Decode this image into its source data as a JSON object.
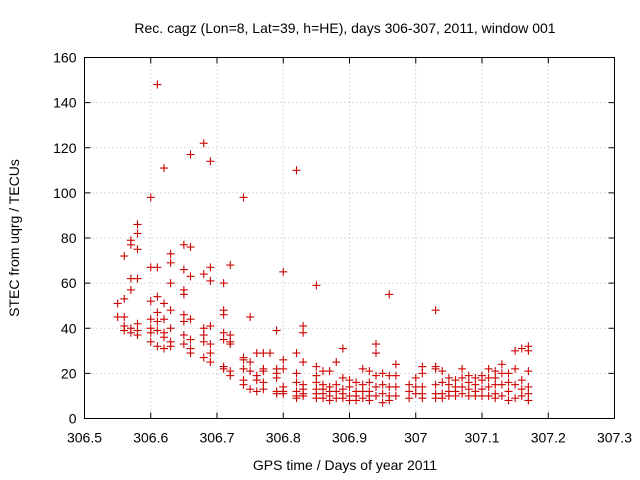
{
  "chart_data": {
    "type": "scatter",
    "title": "Rec. cagz (Lon=8, Lat=39, h=HE), days 306-307, 2011, window 001",
    "xlabel": "GPS time / Days of year 2011",
    "ylabel": "STEC from uqrg / TECUs",
    "xlim": [
      306.5,
      307.3
    ],
    "ylim": [
      0,
      160
    ],
    "x_ticks": [
      306.5,
      306.6,
      306.7,
      306.8,
      306.9,
      307.0,
      307.1,
      307.2,
      307.3
    ],
    "x_tick_labels": [
      "306.5",
      "306.6",
      "306.7",
      "306.8",
      "306.9",
      "307",
      "307.1",
      "307.2",
      "307.3"
    ],
    "y_ticks": [
      0,
      20,
      40,
      60,
      80,
      100,
      120,
      140,
      160
    ],
    "y_tick_labels": [
      "0",
      "20",
      "40",
      "60",
      "80",
      "100",
      "120",
      "140",
      "160"
    ],
    "grid": true,
    "marker": "+",
    "color": "#cc0000",
    "series": [
      {
        "name": "STEC",
        "points": [
          [
            306.55,
            51
          ],
          [
            306.55,
            45
          ],
          [
            306.56,
            72
          ],
          [
            306.56,
            53
          ],
          [
            306.56,
            45
          ],
          [
            306.56,
            41
          ],
          [
            306.56,
            39
          ],
          [
            306.57,
            79
          ],
          [
            306.57,
            77
          ],
          [
            306.57,
            62
          ],
          [
            306.57,
            57
          ],
          [
            306.57,
            40
          ],
          [
            306.57,
            38
          ],
          [
            306.58,
            86
          ],
          [
            306.58,
            82
          ],
          [
            306.58,
            75
          ],
          [
            306.58,
            62
          ],
          [
            306.58,
            42
          ],
          [
            306.58,
            39
          ],
          [
            306.58,
            37
          ],
          [
            306.6,
            98
          ],
          [
            306.6,
            67
          ],
          [
            306.6,
            52
          ],
          [
            306.6,
            44
          ],
          [
            306.6,
            40
          ],
          [
            306.6,
            38
          ],
          [
            306.6,
            34
          ],
          [
            306.61,
            148
          ],
          [
            306.61,
            67
          ],
          [
            306.61,
            54
          ],
          [
            306.61,
            47
          ],
          [
            306.61,
            43
          ],
          [
            306.61,
            39
          ],
          [
            306.61,
            32
          ],
          [
            306.62,
            111
          ],
          [
            306.62,
            51
          ],
          [
            306.62,
            44
          ],
          [
            306.62,
            38
          ],
          [
            306.62,
            36
          ],
          [
            306.62,
            31
          ],
          [
            306.63,
            73
          ],
          [
            306.63,
            69
          ],
          [
            306.63,
            60
          ],
          [
            306.63,
            48
          ],
          [
            306.63,
            40
          ],
          [
            306.63,
            34
          ],
          [
            306.63,
            32
          ],
          [
            306.65,
            77
          ],
          [
            306.65,
            66
          ],
          [
            306.65,
            57
          ],
          [
            306.65,
            55
          ],
          [
            306.65,
            46
          ],
          [
            306.65,
            43
          ],
          [
            306.65,
            37
          ],
          [
            306.65,
            33
          ],
          [
            306.66,
            117
          ],
          [
            306.66,
            76
          ],
          [
            306.66,
            63
          ],
          [
            306.66,
            44
          ],
          [
            306.66,
            35
          ],
          [
            306.66,
            31
          ],
          [
            306.66,
            29
          ],
          [
            306.68,
            122
          ],
          [
            306.68,
            64
          ],
          [
            306.68,
            40
          ],
          [
            306.68,
            37
          ],
          [
            306.68,
            34
          ],
          [
            306.68,
            27
          ],
          [
            306.69,
            114
          ],
          [
            306.69,
            67
          ],
          [
            306.69,
            61
          ],
          [
            306.69,
            41
          ],
          [
            306.69,
            33
          ],
          [
            306.69,
            29
          ],
          [
            306.69,
            25
          ],
          [
            306.71,
            60
          ],
          [
            306.71,
            48
          ],
          [
            306.71,
            46
          ],
          [
            306.71,
            38
          ],
          [
            306.71,
            35
          ],
          [
            306.71,
            23
          ],
          [
            306.71,
            22
          ],
          [
            306.72,
            68
          ],
          [
            306.72,
            37
          ],
          [
            306.72,
            34
          ],
          [
            306.72,
            33
          ],
          [
            306.72,
            21
          ],
          [
            306.72,
            19
          ],
          [
            306.74,
            98
          ],
          [
            306.74,
            27
          ],
          [
            306.74,
            26
          ],
          [
            306.74,
            22
          ],
          [
            306.74,
            17
          ],
          [
            306.74,
            15
          ],
          [
            306.75,
            45
          ],
          [
            306.75,
            25
          ],
          [
            306.75,
            21
          ],
          [
            306.75,
            13
          ],
          [
            306.76,
            29
          ],
          [
            306.76,
            19
          ],
          [
            306.76,
            17
          ],
          [
            306.76,
            12
          ],
          [
            306.77,
            29
          ],
          [
            306.77,
            22
          ],
          [
            306.77,
            21
          ],
          [
            306.77,
            16
          ],
          [
            306.77,
            13
          ],
          [
            306.78,
            29
          ],
          [
            306.79,
            39
          ],
          [
            306.79,
            22
          ],
          [
            306.79,
            20
          ],
          [
            306.79,
            18
          ],
          [
            306.79,
            12
          ],
          [
            306.79,
            11
          ],
          [
            306.8,
            65
          ],
          [
            306.8,
            26
          ],
          [
            306.8,
            22
          ],
          [
            306.8,
            14
          ],
          [
            306.8,
            12
          ],
          [
            306.8,
            11
          ],
          [
            306.82,
            110
          ],
          [
            306.82,
            29
          ],
          [
            306.82,
            20
          ],
          [
            306.82,
            16
          ],
          [
            306.82,
            12
          ],
          [
            306.82,
            10
          ],
          [
            306.82,
            9
          ],
          [
            306.83,
            41
          ],
          [
            306.83,
            38
          ],
          [
            306.83,
            25
          ],
          [
            306.83,
            15
          ],
          [
            306.83,
            13
          ],
          [
            306.83,
            11
          ],
          [
            306.83,
            10
          ],
          [
            306.85,
            59
          ],
          [
            306.85,
            23
          ],
          [
            306.85,
            19
          ],
          [
            306.85,
            16
          ],
          [
            306.85,
            13
          ],
          [
            306.85,
            11
          ],
          [
            306.85,
            9
          ],
          [
            306.86,
            21
          ],
          [
            306.86,
            15
          ],
          [
            306.86,
            13
          ],
          [
            306.86,
            11
          ],
          [
            306.86,
            9
          ],
          [
            306.87,
            21
          ],
          [
            306.87,
            14
          ],
          [
            306.87,
            12
          ],
          [
            306.87,
            10
          ],
          [
            306.87,
            8
          ],
          [
            306.88,
            25
          ],
          [
            306.88,
            15
          ],
          [
            306.88,
            12
          ],
          [
            306.88,
            9
          ],
          [
            306.89,
            31
          ],
          [
            306.89,
            18
          ],
          [
            306.89,
            13
          ],
          [
            306.89,
            11
          ],
          [
            306.89,
            9
          ],
          [
            306.9,
            17
          ],
          [
            306.9,
            14
          ],
          [
            306.9,
            10
          ],
          [
            306.9,
            8
          ],
          [
            306.91,
            16
          ],
          [
            306.91,
            12
          ],
          [
            306.91,
            10
          ],
          [
            306.91,
            8
          ],
          [
            306.92,
            22
          ],
          [
            306.92,
            15
          ],
          [
            306.92,
            12
          ],
          [
            306.92,
            9
          ],
          [
            306.93,
            21
          ],
          [
            306.93,
            16
          ],
          [
            306.93,
            12
          ],
          [
            306.93,
            10
          ],
          [
            306.93,
            8
          ],
          [
            306.94,
            33
          ],
          [
            306.94,
            29
          ],
          [
            306.94,
            19
          ],
          [
            306.94,
            14
          ],
          [
            306.94,
            10
          ],
          [
            306.95,
            20
          ],
          [
            306.95,
            15
          ],
          [
            306.95,
            11
          ],
          [
            306.95,
            7
          ],
          [
            306.96,
            55
          ],
          [
            306.96,
            19
          ],
          [
            306.96,
            14
          ],
          [
            306.96,
            10
          ],
          [
            306.96,
            8
          ],
          [
            306.97,
            24
          ],
          [
            306.97,
            19
          ],
          [
            306.97,
            14
          ],
          [
            306.97,
            10
          ],
          [
            306.99,
            15
          ],
          [
            306.99,
            12
          ],
          [
            306.99,
            9
          ],
          [
            307.0,
            18
          ],
          [
            307.0,
            14
          ],
          [
            307.0,
            11
          ],
          [
            307.01,
            23
          ],
          [
            307.01,
            20
          ],
          [
            307.01,
            14
          ],
          [
            307.01,
            11
          ],
          [
            307.01,
            9
          ],
          [
            307.03,
            48
          ],
          [
            307.03,
            23
          ],
          [
            307.03,
            22
          ],
          [
            307.03,
            15
          ],
          [
            307.03,
            11
          ],
          [
            307.03,
            9
          ],
          [
            307.04,
            21
          ],
          [
            307.04,
            16
          ],
          [
            307.04,
            11
          ],
          [
            307.04,
            9
          ],
          [
            307.05,
            18
          ],
          [
            307.05,
            15
          ],
          [
            307.05,
            12
          ],
          [
            307.05,
            10
          ],
          [
            307.06,
            17
          ],
          [
            307.06,
            14
          ],
          [
            307.06,
            12
          ],
          [
            307.06,
            10
          ],
          [
            307.07,
            22
          ],
          [
            307.07,
            18
          ],
          [
            307.07,
            14
          ],
          [
            307.07,
            11
          ],
          [
            307.08,
            19
          ],
          [
            307.08,
            16
          ],
          [
            307.08,
            13
          ],
          [
            307.08,
            10
          ],
          [
            307.09,
            18
          ],
          [
            307.09,
            15
          ],
          [
            307.09,
            12
          ],
          [
            307.09,
            10
          ],
          [
            307.1,
            19
          ],
          [
            307.1,
            17
          ],
          [
            307.1,
            13
          ],
          [
            307.1,
            10
          ],
          [
            307.11,
            22
          ],
          [
            307.11,
            18
          ],
          [
            307.11,
            14
          ],
          [
            307.11,
            10
          ],
          [
            307.12,
            21
          ],
          [
            307.12,
            18
          ],
          [
            307.12,
            15
          ],
          [
            307.12,
            11
          ],
          [
            307.12,
            9
          ],
          [
            307.13,
            24
          ],
          [
            307.13,
            20
          ],
          [
            307.13,
            15
          ],
          [
            307.13,
            10
          ],
          [
            307.14,
            20
          ],
          [
            307.14,
            16
          ],
          [
            307.14,
            12
          ],
          [
            307.14,
            8
          ],
          [
            307.15,
            30
          ],
          [
            307.15,
            22
          ],
          [
            307.15,
            15
          ],
          [
            307.15,
            9
          ],
          [
            307.16,
            31
          ],
          [
            307.16,
            17
          ],
          [
            307.16,
            13
          ],
          [
            307.16,
            10
          ],
          [
            307.17,
            32
          ],
          [
            307.17,
            30
          ],
          [
            307.17,
            21
          ],
          [
            307.17,
            14
          ],
          [
            307.17,
            11
          ],
          [
            307.17,
            8
          ]
        ]
      }
    ]
  }
}
